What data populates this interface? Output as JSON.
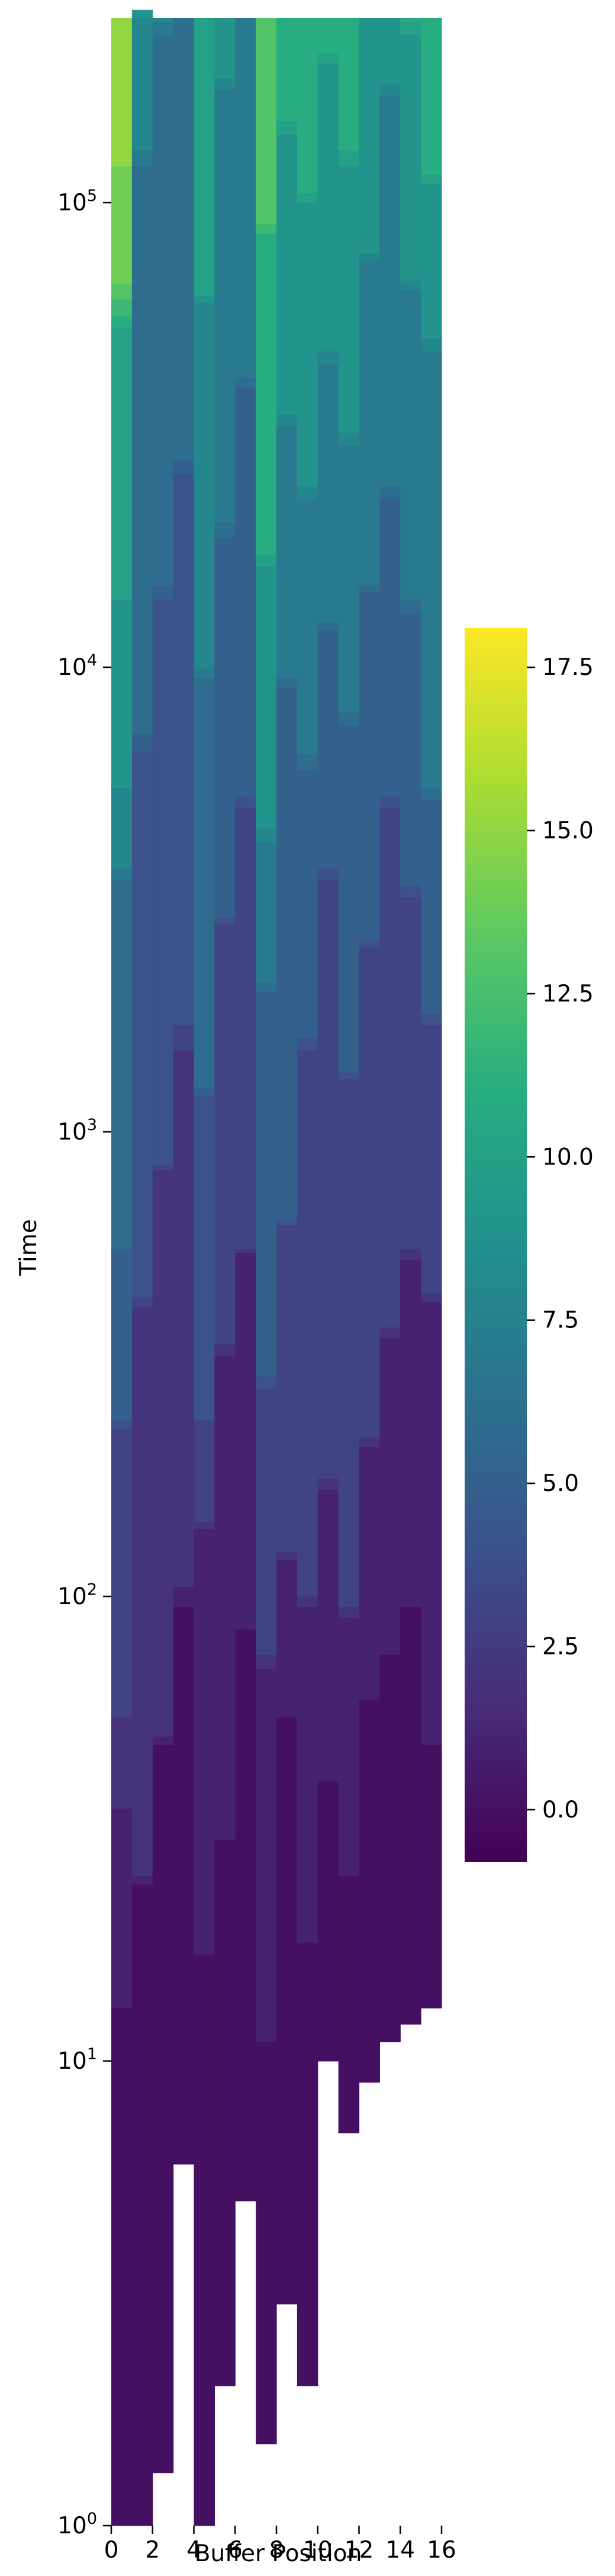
{
  "chart_data": {
    "type": "heatmap",
    "title": "",
    "xlabel": "Buffer Position",
    "ylabel": "Time",
    "x_ticks": [
      0,
      2,
      4,
      6,
      8,
      10,
      12,
      14,
      16
    ],
    "y_scale": "log",
    "y_ticks": [
      {
        "value": 1,
        "base": "10",
        "exp": "0"
      },
      {
        "value": 10,
        "base": "10",
        "exp": "1"
      },
      {
        "value": 100,
        "base": "10",
        "exp": "2"
      },
      {
        "value": 1000,
        "base": "10",
        "exp": "3"
      },
      {
        "value": 10000,
        "base": "10",
        "exp": "4"
      },
      {
        "value": 100000,
        "base": "10",
        "exp": "5"
      }
    ],
    "xlim": [
      0,
      16
    ],
    "ylim": [
      1,
      250000
    ],
    "colormap": "viridis",
    "colorbar": {
      "range": [
        -0.8,
        18.1
      ],
      "ticks": [
        "0.0",
        "2.5",
        "5.0",
        "7.5",
        "10.0",
        "12.5",
        "15.0",
        "17.5"
      ]
    },
    "columns": [
      {
        "position": 1,
        "events": [
          [
            1,
            0
          ],
          [
            13,
            1
          ],
          [
            35,
            2
          ],
          [
            55,
            3
          ],
          [
            230,
            4
          ],
          [
            240,
            5
          ],
          [
            560,
            6
          ],
          [
            3500,
            7
          ],
          [
            3700,
            8
          ],
          [
            5500,
            9
          ],
          [
            14000,
            10
          ],
          [
            54000,
            11
          ],
          [
            57000,
            12
          ],
          [
            62000,
            13
          ],
          [
            67000,
            14
          ],
          [
            120000,
            15
          ]
        ]
      },
      {
        "position": 2,
        "events": [
          [
            1,
            0
          ],
          [
            24,
            1
          ],
          [
            25,
            2
          ],
          [
            420,
            3
          ],
          [
            440,
            4
          ],
          [
            6600,
            5
          ],
          [
            7200,
            6
          ],
          [
            120000,
            7
          ],
          [
            130000,
            8
          ],
          [
            250000,
            9
          ],
          [
            260000,
            10
          ]
        ]
      },
      {
        "position": 3,
        "events": [
          [
            1.3,
            0
          ],
          [
            48,
            1
          ],
          [
            50,
            2
          ],
          [
            830,
            3
          ],
          [
            850,
            4
          ],
          [
            14000,
            5
          ],
          [
            15000,
            6
          ],
          [
            230000,
            7
          ],
          [
            245000,
            8
          ]
        ]
      },
      {
        "position": 4,
        "events": [
          [
            6,
            0
          ],
          [
            95,
            1
          ],
          [
            105,
            2
          ],
          [
            1500,
            3
          ],
          [
            1700,
            4
          ],
          [
            26000,
            5
          ],
          [
            28000,
            6
          ]
        ]
      },
      {
        "position": 5,
        "events": [
          [
            1,
            0
          ],
          [
            17,
            1
          ],
          [
            140,
            2
          ],
          [
            145,
            3
          ],
          [
            240,
            4
          ],
          [
            1200,
            5
          ],
          [
            1250,
            6
          ],
          [
            9500,
            7
          ],
          [
            10000,
            8
          ],
          [
            61000,
            9
          ],
          [
            63000,
            10
          ]
        ]
      },
      {
        "position": 6,
        "events": [
          [
            2,
            0
          ],
          [
            30,
            1
          ],
          [
            330,
            2
          ],
          [
            350,
            3
          ],
          [
            2800,
            4
          ],
          [
            2900,
            5
          ],
          [
            19000,
            6
          ],
          [
            20500,
            7
          ],
          [
            175000,
            8
          ],
          [
            185000,
            9
          ]
        ]
      },
      {
        "position": 7,
        "events": [
          [
            5,
            0
          ],
          [
            85,
            1
          ],
          [
            550,
            2
          ],
          [
            560,
            3
          ],
          [
            5000,
            4
          ],
          [
            5300,
            5
          ],
          [
            40000,
            6
          ],
          [
            42000,
            7
          ]
        ]
      },
      {
        "position": 8,
        "events": [
          [
            1.5,
            0
          ],
          [
            11,
            1
          ],
          [
            70,
            2
          ],
          [
            75,
            3
          ],
          [
            280,
            4
          ],
          [
            300,
            5
          ],
          [
            2000,
            6
          ],
          [
            2100,
            7
          ],
          [
            4200,
            8
          ],
          [
            4500,
            9
          ],
          [
            16500,
            10
          ],
          [
            17500,
            11
          ],
          [
            86000,
            12
          ],
          [
            90000,
            13
          ]
        ]
      },
      {
        "position": 9,
        "events": [
          [
            3,
            0
          ],
          [
            55,
            1
          ],
          [
            120,
            2
          ],
          [
            125,
            3
          ],
          [
            630,
            4
          ],
          [
            650,
            5
          ],
          [
            9000,
            6
          ],
          [
            9500,
            7
          ],
          [
            33000,
            8
          ],
          [
            35000,
            9
          ],
          [
            140000,
            10
          ],
          [
            150000,
            11
          ]
        ]
      },
      {
        "position": 10,
        "events": [
          [
            2,
            0
          ],
          [
            18,
            1
          ],
          [
            95,
            2
          ],
          [
            100,
            3
          ],
          [
            1500,
            4
          ],
          [
            1600,
            5
          ],
          [
            6000,
            6
          ],
          [
            6500,
            7
          ],
          [
            23000,
            8
          ],
          [
            24500,
            9
          ],
          [
            100000,
            10
          ],
          [
            105000,
            11
          ]
        ]
      },
      {
        "position": 11,
        "events": [
          [
            10,
            0
          ],
          [
            40,
            1
          ],
          [
            170,
            2
          ],
          [
            180,
            3
          ],
          [
            3500,
            4
          ],
          [
            3700,
            5
          ],
          [
            12000,
            6
          ],
          [
            12500,
            7
          ],
          [
            45000,
            8
          ],
          [
            48000,
            9
          ],
          [
            200000,
            10
          ],
          [
            210000,
            11
          ]
        ]
      },
      {
        "position": 12,
        "events": [
          [
            7,
            0
          ],
          [
            25,
            1
          ],
          [
            90,
            2
          ],
          [
            95,
            3
          ],
          [
            1300,
            4
          ],
          [
            1350,
            5
          ],
          [
            7500,
            6
          ],
          [
            8000,
            7
          ],
          [
            30000,
            8
          ],
          [
            32000,
            9
          ],
          [
            120000,
            10
          ],
          [
            130000,
            11
          ]
        ]
      },
      {
        "position": 13,
        "events": [
          [
            9,
            0
          ],
          [
            60,
            1
          ],
          [
            210,
            2
          ],
          [
            220,
            3
          ],
          [
            2500,
            4
          ],
          [
            2600,
            5
          ],
          [
            14500,
            6
          ],
          [
            15000,
            7
          ],
          [
            75000,
            8
          ],
          [
            78000,
            9
          ]
        ]
      },
      {
        "position": 14,
        "events": [
          [
            11,
            0
          ],
          [
            75,
            1
          ],
          [
            360,
            2
          ],
          [
            380,
            3
          ],
          [
            5000,
            4
          ],
          [
            5300,
            5
          ],
          [
            23000,
            6
          ],
          [
            24500,
            7
          ],
          [
            170000,
            8
          ],
          [
            180000,
            9
          ]
        ]
      },
      {
        "position": 15,
        "events": [
          [
            12,
            0
          ],
          [
            95,
            1
          ],
          [
            530,
            2
          ],
          [
            560,
            3
          ],
          [
            3200,
            4
          ],
          [
            3400,
            5
          ],
          [
            13000,
            6
          ],
          [
            14000,
            7
          ],
          [
            65000,
            8
          ],
          [
            68000,
            9
          ],
          [
            230000,
            10
          ],
          [
            245000,
            11
          ]
        ]
      },
      {
        "position": 16,
        "events": [
          [
            13,
            0
          ],
          [
            48,
            1
          ],
          [
            430,
            2
          ],
          [
            450,
            3
          ],
          [
            1700,
            4
          ],
          [
            1800,
            5
          ],
          [
            5200,
            6
          ],
          [
            5500,
            7
          ],
          [
            48000,
            8
          ],
          [
            51000,
            9
          ],
          [
            110000,
            10
          ],
          [
            115000,
            11
          ]
        ]
      }
    ]
  }
}
